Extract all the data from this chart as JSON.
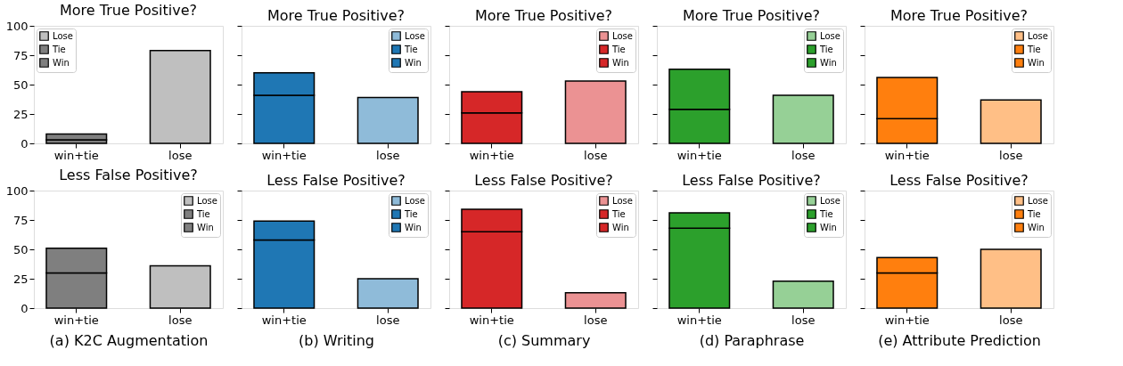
{
  "chart_data": [
    {
      "type": "bar",
      "stacked": true,
      "title": "More True Positive?",
      "categories": [
        "win+tie",
        "lose"
      ],
      "ylim": [
        0,
        100
      ],
      "yticks": [
        0,
        25,
        50,
        75,
        100
      ],
      "legend": "top left",
      "series": [
        {
          "name": "Lose",
          "color": "#bfbfbf",
          "values": [
            null,
            79
          ]
        },
        {
          "name": "Tie",
          "color": "#7f7f7f",
          "values": [
            3,
            null
          ]
        },
        {
          "name": "Win",
          "color": "#7f7f7f",
          "values": [
            5,
            null
          ]
        }
      ]
    },
    {
      "type": "bar",
      "stacked": true,
      "title": "More True Positive?",
      "categories": [
        "win+tie",
        "lose"
      ],
      "ylim": [
        0,
        100
      ],
      "yticks": [
        0,
        25,
        50,
        75,
        100
      ],
      "tick_labels": "x",
      "legend": "top right",
      "series": [
        {
          "name": "Lose",
          "color": "#8fbbd9",
          "values": [
            null,
            39
          ]
        },
        {
          "name": "Tie",
          "color": "#1f77b4",
          "values": [
            41,
            null
          ]
        },
        {
          "name": "Win",
          "color": "#1f77b4",
          "values": [
            19,
            null
          ]
        }
      ]
    },
    {
      "type": "bar",
      "stacked": true,
      "title": "More True Positive?",
      "categories": [
        "win+tie",
        "lose"
      ],
      "ylim": [
        0,
        100
      ],
      "yticks": [
        0,
        25,
        50,
        75,
        100
      ],
      "tick_labels": "x",
      "legend": "top right",
      "series": [
        {
          "name": "Lose",
          "color": "#eb9293",
          "values": [
            null,
            53
          ]
        },
        {
          "name": "Tie",
          "color": "#d62728",
          "values": [
            26,
            null
          ]
        },
        {
          "name": "Win",
          "color": "#d62728",
          "values": [
            18,
            null
          ]
        }
      ]
    },
    {
      "type": "bar",
      "stacked": true,
      "title": "More True Positive?",
      "categories": [
        "win+tie",
        "lose"
      ],
      "ylim": [
        0,
        100
      ],
      "yticks": [
        0,
        25,
        50,
        75,
        100
      ],
      "tick_labels": "x",
      "legend": "top right",
      "series": [
        {
          "name": "Lose",
          "color": "#96d096",
          "values": [
            null,
            41
          ]
        },
        {
          "name": "Tie",
          "color": "#2ca02c",
          "values": [
            29,
            null
          ]
        },
        {
          "name": "Win",
          "color": "#2ca02c",
          "values": [
            34,
            null
          ]
        }
      ]
    },
    {
      "type": "bar",
      "stacked": true,
      "title": "More True Positive?",
      "categories": [
        "win+tie",
        "lose"
      ],
      "ylim": [
        0,
        100
      ],
      "yticks": [
        0,
        25,
        50,
        75,
        100
      ],
      "tick_labels": "x",
      "legend": "top right",
      "series": [
        {
          "name": "Lose",
          "color": "#ffbf86",
          "values": [
            null,
            37
          ]
        },
        {
          "name": "Tie",
          "color": "#ff7f0e",
          "values": [
            21,
            null
          ]
        },
        {
          "name": "Win",
          "color": "#ff7f0e",
          "values": [
            35,
            null
          ]
        }
      ]
    },
    {
      "type": "bar",
      "stacked": true,
      "title": "Less False Positive?",
      "categories": [
        "win+tie",
        "lose"
      ],
      "ylim": [
        0,
        100
      ],
      "yticks": [
        0,
        25,
        50,
        75,
        100
      ],
      "legend": "top right",
      "annotations": [
        "(a) K2C Augmentation"
      ],
      "series": [
        {
          "name": "Lose",
          "color": "#bfbfbf",
          "values": [
            null,
            36
          ]
        },
        {
          "name": "Tie",
          "color": "#7f7f7f",
          "values": [
            30,
            null
          ]
        },
        {
          "name": "Win",
          "color": "#7f7f7f",
          "values": [
            21,
            null
          ]
        }
      ]
    },
    {
      "type": "bar",
      "stacked": true,
      "title": "Less False Positive?",
      "categories": [
        "win+tie",
        "lose"
      ],
      "ylim": [
        0,
        100
      ],
      "yticks": [
        0,
        25,
        50,
        75,
        100
      ],
      "tick_labels": "x",
      "legend": "top right",
      "annotations": [
        "(b) Writing"
      ],
      "series": [
        {
          "name": "Lose",
          "color": "#8fbbd9",
          "values": [
            null,
            25
          ]
        },
        {
          "name": "Tie",
          "color": "#1f77b4",
          "values": [
            58,
            null
          ]
        },
        {
          "name": "Win",
          "color": "#1f77b4",
          "values": [
            16,
            null
          ]
        }
      ]
    },
    {
      "type": "bar",
      "stacked": true,
      "title": "Less False Positive?",
      "categories": [
        "win+tie",
        "lose"
      ],
      "ylim": [
        0,
        100
      ],
      "yticks": [
        0,
        25,
        50,
        75,
        100
      ],
      "tick_labels": "x",
      "legend": "top right",
      "annotations": [
        "(c) Summary"
      ],
      "series": [
        {
          "name": "Lose",
          "color": "#eb9293",
          "values": [
            null,
            13
          ]
        },
        {
          "name": "Tie",
          "color": "#d62728",
          "values": [
            65,
            null
          ]
        },
        {
          "name": "Win",
          "color": "#d62728",
          "values": [
            19,
            null
          ]
        }
      ]
    },
    {
      "type": "bar",
      "stacked": true,
      "title": "Less False Positive?",
      "categories": [
        "win+tie",
        "lose"
      ],
      "ylim": [
        0,
        100
      ],
      "yticks": [
        0,
        25,
        50,
        75,
        100
      ],
      "tick_labels": "x",
      "legend": "top right",
      "annotations": [
        "(d) Paraphrase"
      ],
      "series": [
        {
          "name": "Lose",
          "color": "#96d096",
          "values": [
            null,
            23
          ]
        },
        {
          "name": "Tie",
          "color": "#2ca02c",
          "values": [
            68,
            null
          ]
        },
        {
          "name": "Win",
          "color": "#2ca02c",
          "values": [
            13,
            null
          ]
        }
      ]
    },
    {
      "type": "bar",
      "stacked": true,
      "title": "Less False Positive?",
      "categories": [
        "win+tie",
        "lose"
      ],
      "ylim": [
        0,
        100
      ],
      "yticks": [
        0,
        25,
        50,
        75,
        100
      ],
      "tick_labels": "x",
      "legend": "top right",
      "annotations": [
        "(e) Attribute Prediction"
      ],
      "series": [
        {
          "name": "Lose",
          "color": "#ffbf86",
          "values": [
            null,
            50
          ]
        },
        {
          "name": "Tie",
          "color": "#ff7f0e",
          "values": [
            30,
            null
          ]
        },
        {
          "name": "Win",
          "color": "#ff7f0e",
          "values": [
            13,
            null
          ]
        }
      ]
    }
  ]
}
